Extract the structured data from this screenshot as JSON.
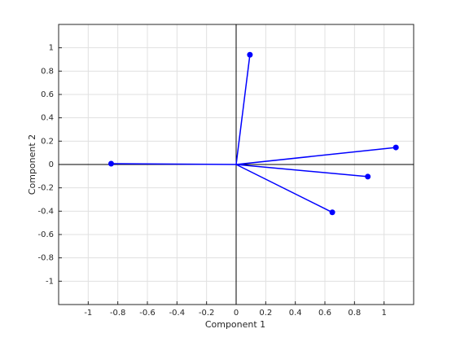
{
  "chart_data": {
    "type": "biplot",
    "x_label": "Component 1",
    "y_label": "Component 2",
    "x": [
      0.093,
      1.08,
      0.89,
      0.65,
      -0.845
    ],
    "y": [
      0.94,
      0.146,
      -0.104,
      -0.41,
      0.007
    ],
    "color": "#0000ff",
    "xlim": [
      -1.2,
      1.2
    ],
    "ylim": [
      -1.2,
      1.2
    ],
    "xticks": [
      -1,
      -0.8,
      -0.6,
      -0.4,
      -0.2,
      0,
      0.2,
      0.4,
      0.6,
      0.8,
      1
    ],
    "yticks": [
      -1,
      -0.8,
      -0.6,
      -0.4,
      -0.2,
      0,
      0.2,
      0.4,
      0.6,
      0.8,
      1
    ],
    "grid": true
  }
}
